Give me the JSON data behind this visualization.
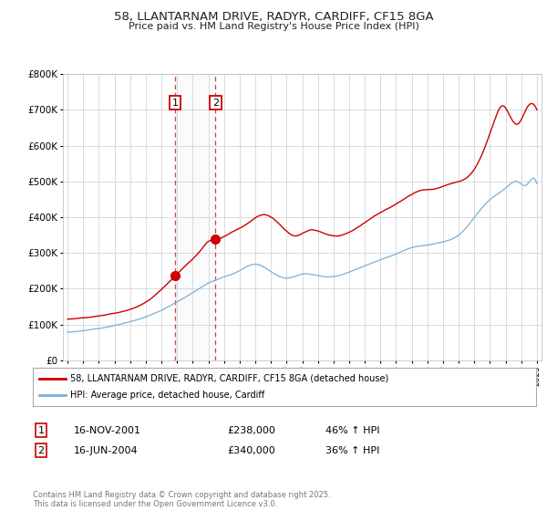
{
  "title": "58, LLANTARNAM DRIVE, RADYR, CARDIFF, CF15 8GA",
  "subtitle": "Price paid vs. HM Land Registry's House Price Index (HPI)",
  "background_color": "#ffffff",
  "plot_bg_color": "#ffffff",
  "grid_color": "#cccccc",
  "red_line_color": "#cc0000",
  "blue_line_color": "#7bafd4",
  "sale1_date_num": 2001.88,
  "sale2_date_num": 2004.46,
  "sale1_price": 238000,
  "sale2_price": 340000,
  "legend1": "58, LLANTARNAM DRIVE, RADYR, CARDIFF, CF15 8GA (detached house)",
  "legend2": "HPI: Average price, detached house, Cardiff",
  "table_row1": [
    "1",
    "16-NOV-2001",
    "£238,000",
    "46% ↑ HPI"
  ],
  "table_row2": [
    "2",
    "16-JUN-2004",
    "£340,000",
    "36% ↑ HPI"
  ],
  "footer": "Contains HM Land Registry data © Crown copyright and database right 2025.\nThis data is licensed under the Open Government Licence v3.0.",
  "ylim": [
    0,
    800000
  ],
  "xlim_start": 1994.7,
  "xlim_end": 2025.3,
  "yticks": [
    0,
    100000,
    200000,
    300000,
    400000,
    500000,
    600000,
    700000,
    800000
  ],
  "ylabels": [
    "£0",
    "£100K",
    "£200K",
    "£300K",
    "£400K",
    "£500K",
    "£600K",
    "£700K",
    "£800K"
  ]
}
